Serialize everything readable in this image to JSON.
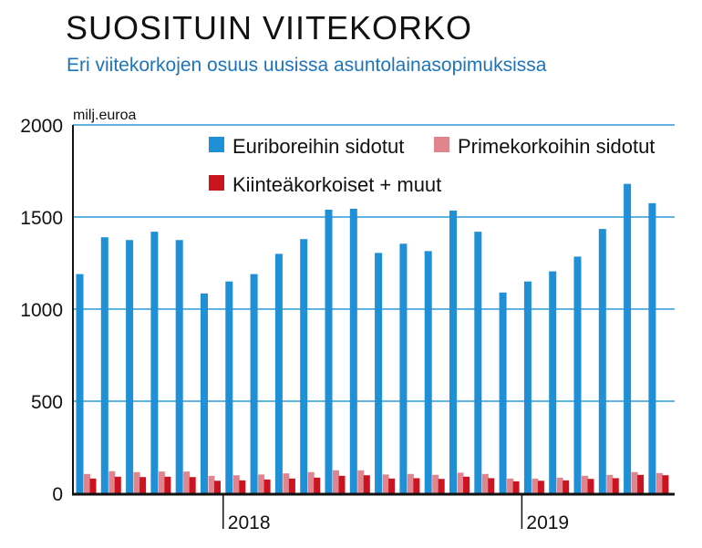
{
  "chart_data": {
    "type": "bar",
    "title": "SUOSITUIN VIITEKORKO",
    "subtitle": "Eri viitekorkojen osuus uusissa asuntolainasopimuksissa",
    "ylabel": "milj.euroa",
    "ylim": [
      0,
      2000
    ],
    "yticks": [
      0,
      500,
      1000,
      1500,
      2000
    ],
    "ytick_labels": [
      "0",
      "500",
      "1000",
      "1500",
      "2000"
    ],
    "grid": true,
    "legend_position": "top-right",
    "year_labels": [
      {
        "label": "2018",
        "index": 6
      },
      {
        "label": "2019",
        "index": 18
      }
    ],
    "months": 24,
    "series": [
      {
        "name": "Euriboreihin sidotut",
        "color": "#1f8fd6",
        "values": [
          1190,
          1390,
          1375,
          1420,
          1375,
          1085,
          1150,
          1190,
          1300,
          1380,
          1540,
          1545,
          1305,
          1355,
          1315,
          1535,
          1420,
          1090,
          1150,
          1205,
          1285,
          1435,
          1680,
          1575
        ]
      },
      {
        "name": "Primekorkoihin sidotut",
        "color": "#e0848e",
        "values": [
          105,
          120,
          115,
          118,
          118,
          95,
          98,
          102,
          108,
          115,
          125,
          125,
          102,
          105,
          100,
          112,
          105,
          80,
          80,
          85,
          95,
          100,
          115,
          110
        ]
      },
      {
        "name": "Kiinteäkorkoiset + muut",
        "color": "#cc1421",
        "values": [
          80,
          90,
          88,
          90,
          88,
          68,
          70,
          75,
          80,
          85,
          95,
          98,
          80,
          82,
          78,
          90,
          82,
          65,
          68,
          70,
          78,
          82,
          100,
          98
        ]
      }
    ]
  }
}
